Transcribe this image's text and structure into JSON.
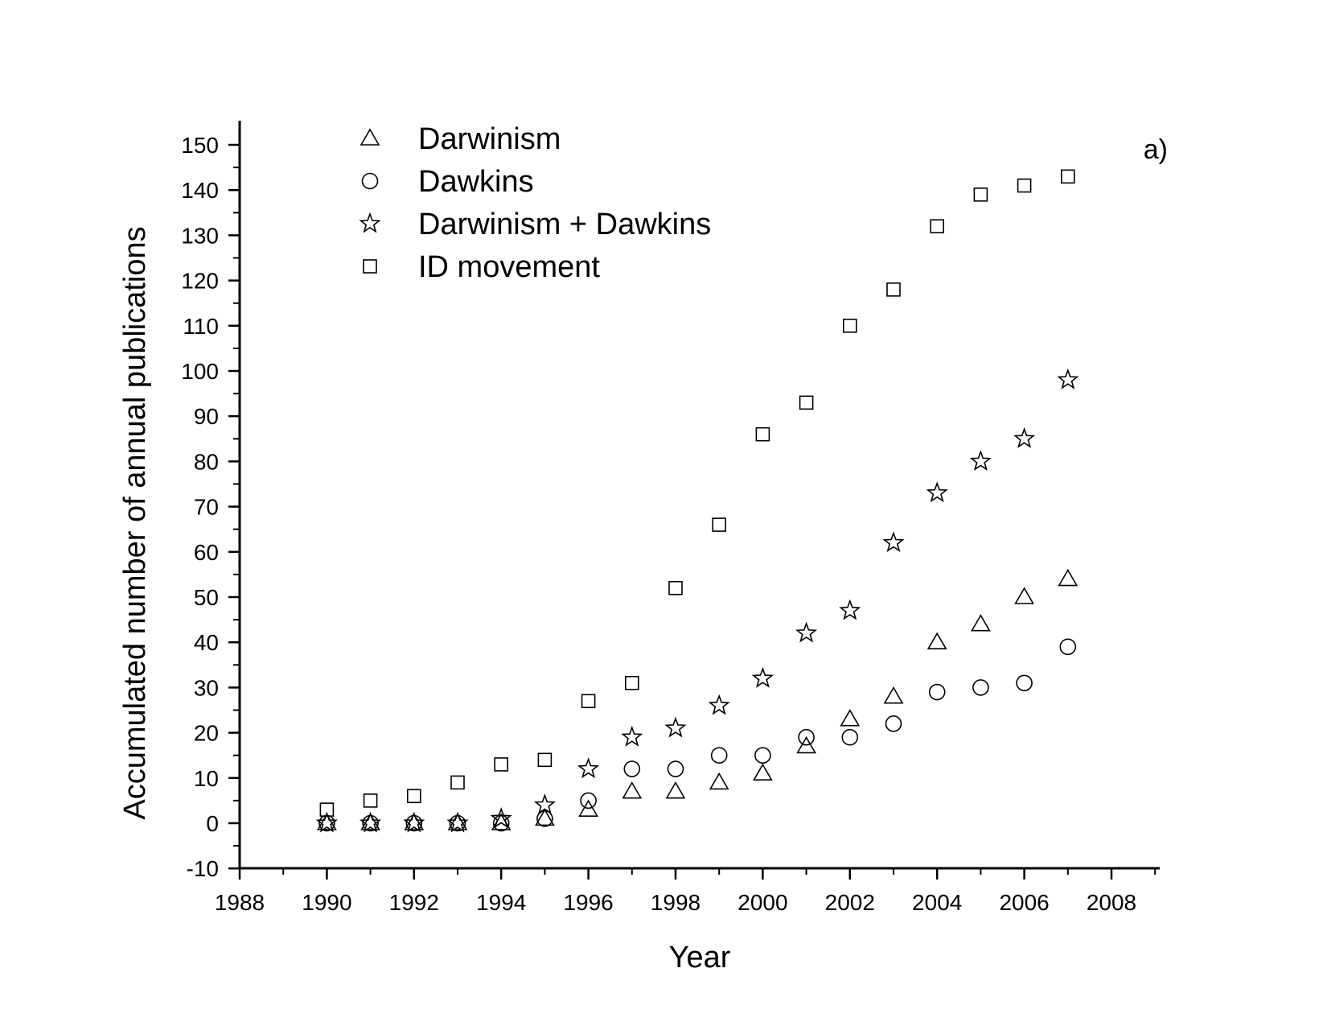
{
  "chart_data": {
    "type": "scatter",
    "title": "",
    "panel_label": "a)",
    "xlabel": "Year",
    "ylabel": "Accumulated number of annual publications",
    "xlim": [
      1988,
      2009
    ],
    "ylim": [
      -10,
      152
    ],
    "x_ticks": [
      "1988",
      "1990",
      "1992",
      "1994",
      "1996",
      "1998",
      "2000",
      "2002",
      "2004",
      "2006",
      "2008"
    ],
    "y_ticks": [
      "-10",
      "0",
      "10",
      "20",
      "30",
      "40",
      "50",
      "60",
      "70",
      "80",
      "90",
      "100",
      "110",
      "120",
      "130",
      "140",
      "150"
    ],
    "grid": false,
    "legend_position": "top-left",
    "x": [
      1990,
      1991,
      1992,
      1993,
      1994,
      1995,
      1996,
      1997,
      1998,
      1999,
      2000,
      2001,
      2002,
      2003,
      2004,
      2005,
      2006,
      2007
    ],
    "series": [
      {
        "name": "Darwinism",
        "marker": "triangle",
        "values": [
          0,
          0,
          0,
          0,
          0,
          1,
          3,
          7,
          7,
          9,
          11,
          17,
          23,
          28,
          40,
          44,
          50,
          54
        ]
      },
      {
        "name": "Dawkins",
        "marker": "circle",
        "values": [
          0,
          0,
          0,
          0,
          0,
          1,
          5,
          12,
          12,
          15,
          15,
          19,
          19,
          22,
          29,
          30,
          31,
          39
        ]
      },
      {
        "name": "Darwinism + Dawkins",
        "marker": "star",
        "values": [
          0,
          0,
          0,
          0,
          1,
          4,
          12,
          19,
          21,
          26,
          32,
          42,
          47,
          62,
          73,
          80,
          85,
          98
        ]
      },
      {
        "name": "ID movement",
        "marker": "square",
        "values": [
          3,
          5,
          6,
          9,
          13,
          14,
          27,
          31,
          52,
          66,
          86,
          93,
          110,
          118,
          132,
          139,
          141,
          143
        ]
      }
    ]
  }
}
